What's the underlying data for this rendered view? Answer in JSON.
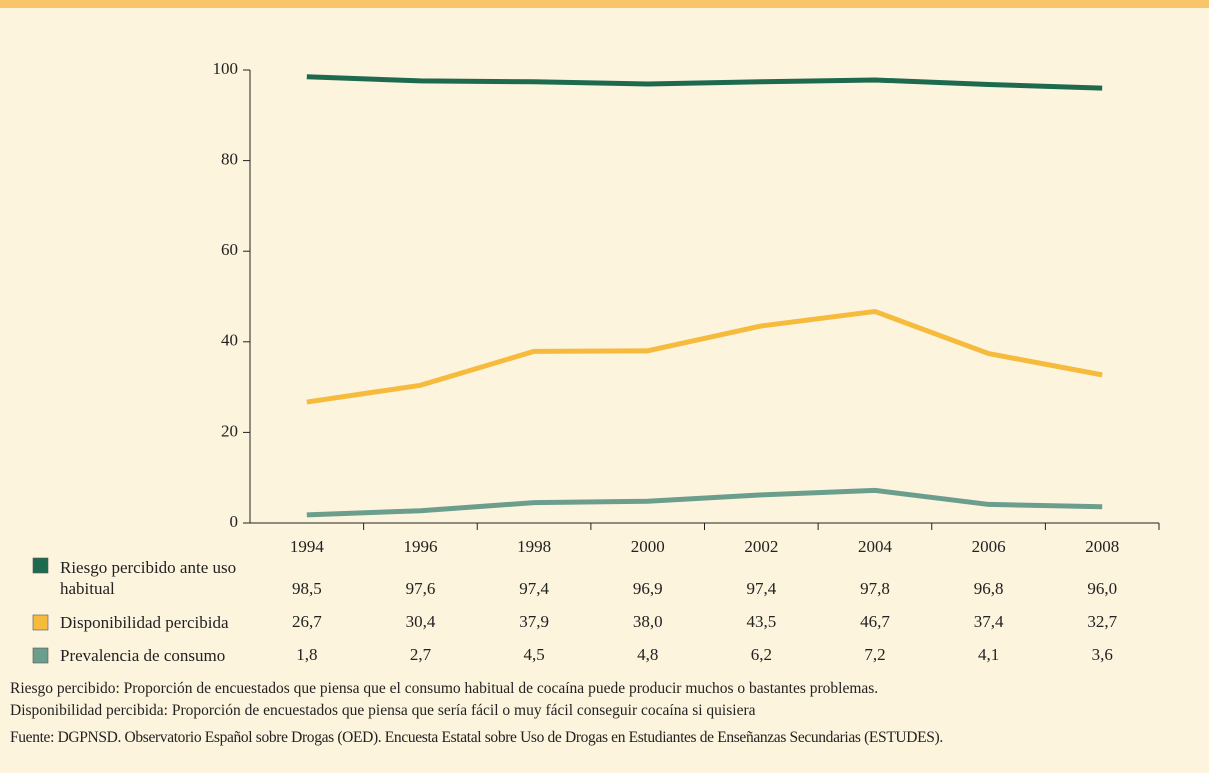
{
  "chart_data": {
    "type": "line",
    "categories": [
      "1994",
      "1996",
      "1998",
      "2000",
      "2002",
      "2004",
      "2006",
      "2008"
    ],
    "series": [
      {
        "name": "Riesgo percibido ante uso habitual",
        "color": "#1e6a4e",
        "values": [
          98.5,
          97.6,
          97.4,
          96.9,
          97.4,
          97.8,
          96.8,
          96.0
        ],
        "value_labels": [
          "98,5",
          "97,6",
          "97,4",
          "96,9",
          "97,4",
          "97,8",
          "96,8",
          "96,0"
        ]
      },
      {
        "name": "Disponibilidad percibida",
        "color": "#f6bb3c",
        "values": [
          26.7,
          30.4,
          37.9,
          38.0,
          43.5,
          46.7,
          37.4,
          32.7
        ],
        "value_labels": [
          "26,7",
          "30,4",
          "37,9",
          "38,0",
          "43,5",
          "46,7",
          "37,4",
          "32,7"
        ]
      },
      {
        "name": "Prevalencia de consumo",
        "color": "#6c9e8d",
        "values": [
          1.8,
          2.7,
          4.5,
          4.8,
          6.2,
          7.2,
          4.1,
          3.6
        ],
        "value_labels": [
          "1,8",
          "2,7",
          "4,5",
          "4,8",
          "6,2",
          "7,2",
          "4,1",
          "3,6"
        ]
      }
    ],
    "ylim": [
      0,
      100
    ],
    "yticks": [
      0,
      20,
      40,
      60,
      80,
      100
    ],
    "notes": [
      "Riesgo percibido: Proporción de encuestados que piensa que el consumo habitual de cocaína puede producir muchos o bastantes problemas.",
      "Disponibilidad percibida: Proporción de encuestados que piensa que sería fácil o muy fácil conseguir cocaína si quisiera"
    ],
    "source": "Fuente: DGPNSD. Observatorio Español sobre Drogas (OED). Encuesta Estatal sobre Uso de Drogas en Estudiantes de Enseñanzas Secundarias (ESTUDES)."
  }
}
